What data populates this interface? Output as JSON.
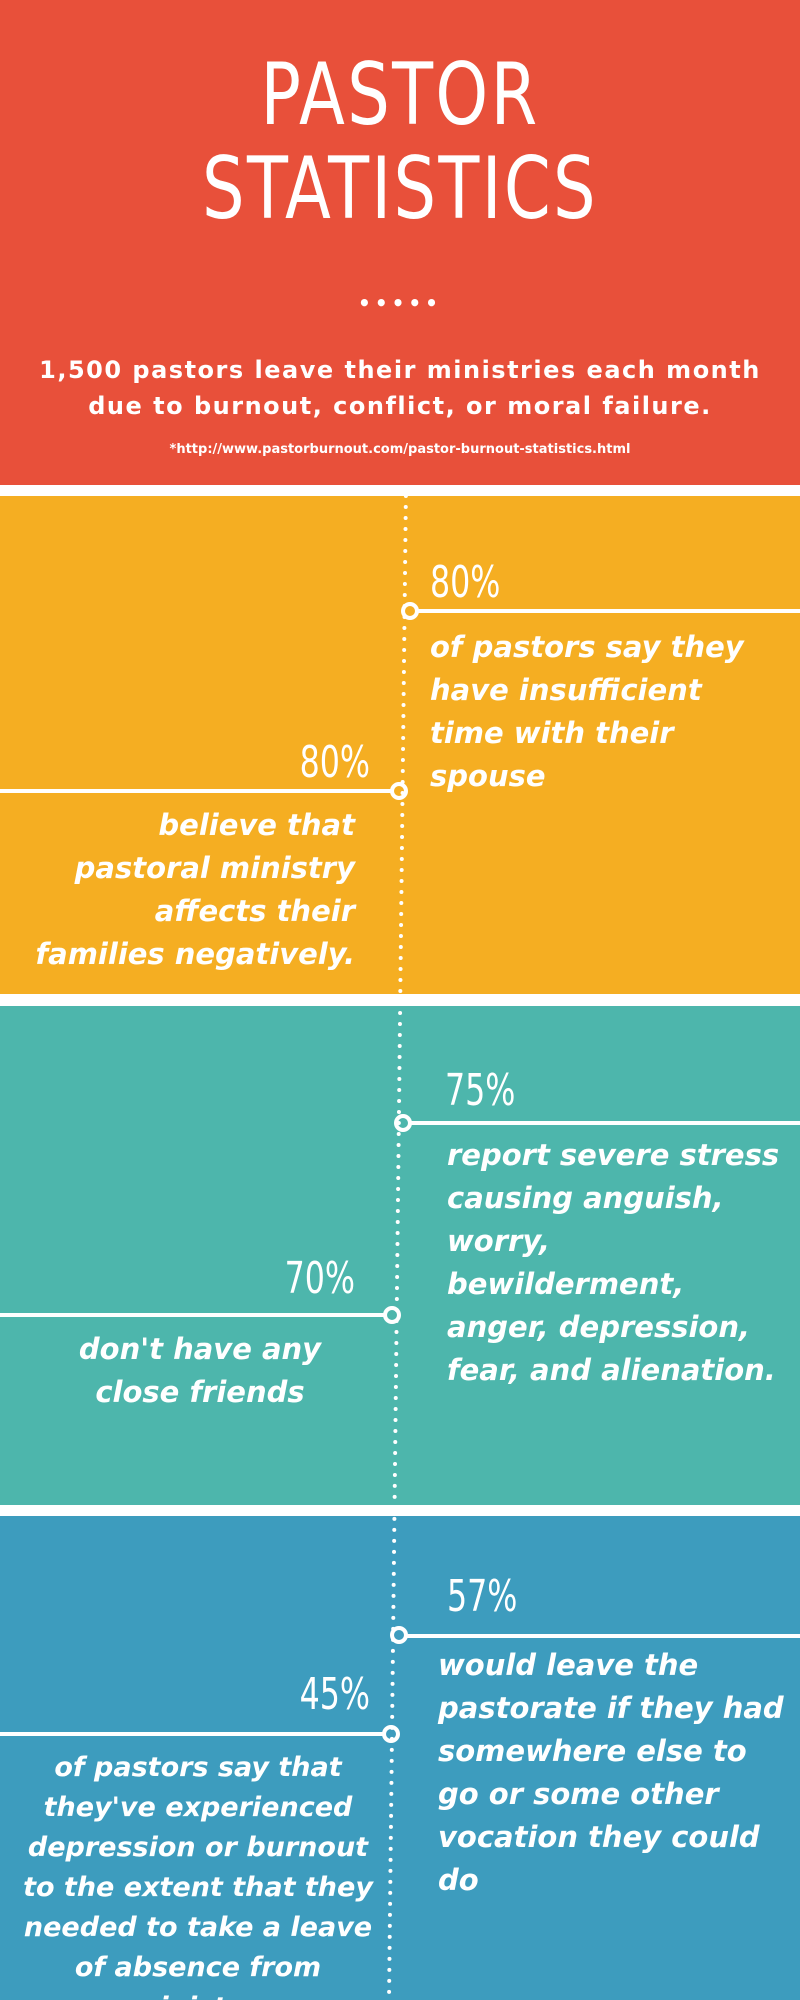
{
  "colors": {
    "header": "#e8503a",
    "yellow": "#f5ae22",
    "teal": "#4db6ac",
    "blue": "#3d9cbe",
    "text": "#ffffff"
  },
  "header": {
    "title_line1": "PASTOR",
    "title_line2": "STATISTICS",
    "dots": "•••••",
    "subtitle": "1,500 pastors leave their ministries each month due to burnout, conflict, or moral failure.",
    "source": "*http://www.pastorburnout.com/pastor-burnout-statistics.html"
  },
  "stats": [
    {
      "percent": "80%",
      "text": "of pastors say they have insufficient time with their spouse"
    },
    {
      "percent": "80%",
      "text": "believe that pastoral ministry affects their families negatively."
    },
    {
      "percent": "75%",
      "text": "report severe stress causing anguish, worry, bewilderment, anger, depression, fear, and alienation."
    },
    {
      "percent": "70%",
      "text": "don't have any close friends"
    },
    {
      "percent": "57%",
      "text": "would leave the pastorate if they had somewhere else to go or some other vocation they could do"
    },
    {
      "percent": "45%",
      "text": "of pastors say that they've experienced depression or burnout to the extent that they needed to take a leave of absence from ministry."
    }
  ]
}
